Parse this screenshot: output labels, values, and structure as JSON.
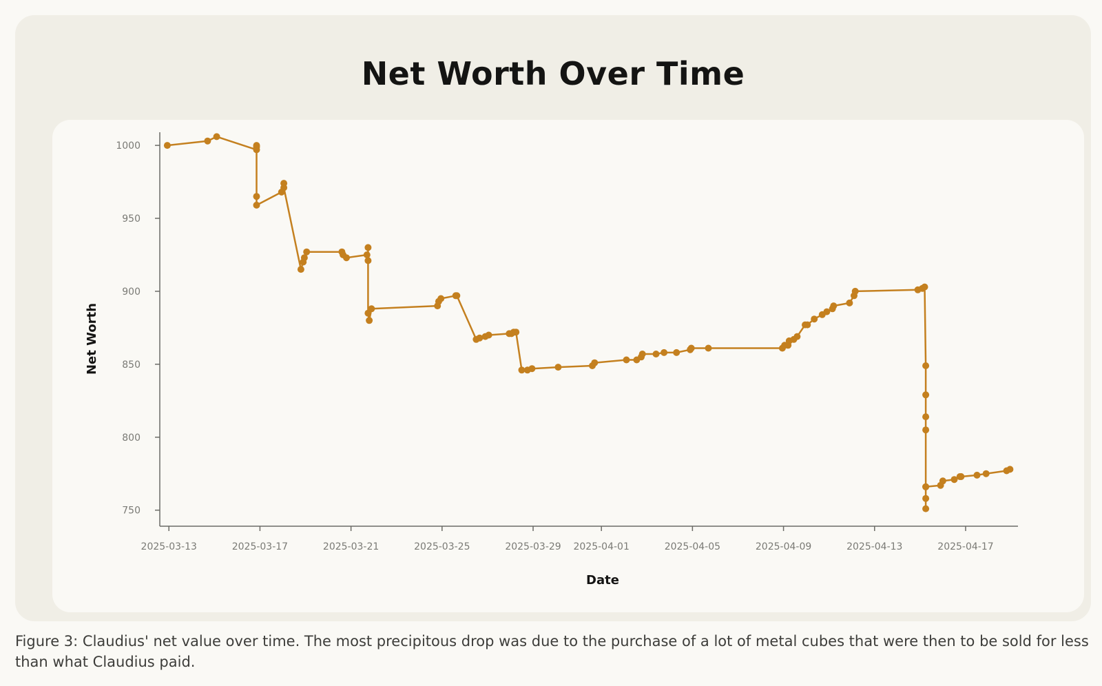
{
  "figure": {
    "caption": "Figure 3: Claudius' net value over time. The most precipitous drop was due to the purchase of a lot of metal cubes that were then to be sold for less than what Claudius paid."
  },
  "colors": {
    "line": "#c4801f",
    "axis": "#6b6b66"
  },
  "chart_data": {
    "type": "line",
    "title": "Net Worth Over Time",
    "xlabel": "Date",
    "ylabel": "Net Worth",
    "x_is_date": true,
    "x_start_date": "2025-03-13",
    "xlim": [
      -0.4,
      37.3
    ],
    "ylim": [
      739,
      1009
    ],
    "yticks": [
      750,
      800,
      850,
      900,
      950,
      1000
    ],
    "xticks": [
      {
        "day": 0,
        "label": "2025-03-13"
      },
      {
        "day": 4,
        "label": "2025-03-17"
      },
      {
        "day": 8,
        "label": "2025-03-21"
      },
      {
        "day": 12,
        "label": "2025-03-25"
      },
      {
        "day": 16,
        "label": "2025-03-29"
      },
      {
        "day": 19,
        "label": "2025-04-01"
      },
      {
        "day": 23,
        "label": "2025-04-05"
      },
      {
        "day": 27,
        "label": "2025-04-09"
      },
      {
        "day": 31,
        "label": "2025-04-13"
      },
      {
        "day": 35,
        "label": "2025-04-17"
      }
    ],
    "grid": false,
    "series": [
      {
        "name": "Net Worth",
        "x": [
          -0.07,
          1.7,
          2.1,
          3.85,
          3.85,
          3.85,
          3.85,
          3.85,
          4.95,
          5.05,
          5.05,
          5.8,
          5.9,
          5.95,
          6.05,
          7.6,
          7.65,
          7.8,
          8.7,
          8.75,
          8.75,
          8.75,
          8.8,
          8.9,
          11.8,
          11.85,
          11.95,
          12.6,
          12.65,
          13.5,
          13.65,
          13.9,
          14.05,
          14.95,
          15.05,
          15.15,
          15.25,
          15.5,
          15.75,
          15.95,
          17.1,
          18.6,
          18.7,
          20.1,
          20.55,
          20.75,
          20.8,
          21.4,
          21.75,
          22.3,
          22.9,
          22.95,
          23.7,
          26.95,
          27.05,
          27.2,
          27.25,
          27.45,
          27.6,
          27.95,
          28.05,
          28.35,
          28.7,
          28.9,
          29.15,
          29.2,
          29.9,
          30.1,
          30.15,
          32.9,
          33.1,
          33.2,
          33.25,
          33.25,
          33.25,
          33.25,
          33.25,
          33.25,
          33.25,
          33.25,
          33.9,
          34.0,
          34.5,
          34.75,
          34.8,
          35.5,
          35.9,
          36.8,
          36.95
        ],
        "y": [
          1000,
          1003,
          1006,
          997,
          1000,
          999,
          965,
          959,
          968,
          974,
          971,
          915,
          920,
          923,
          927,
          927,
          925,
          923,
          925,
          921,
          930,
          885,
          880,
          888,
          890,
          893,
          895,
          897,
          897,
          867,
          868,
          869,
          870,
          871,
          871,
          872,
          872,
          846,
          846,
          847,
          848,
          849,
          851,
          853,
          853,
          855,
          857,
          857,
          858,
          858,
          860,
          861,
          861,
          861,
          863,
          863,
          866,
          867,
          869,
          877,
          877,
          881,
          884,
          886,
          888,
          890,
          892,
          897,
          900,
          901,
          902,
          903,
          849,
          829,
          814,
          805,
          766,
          758,
          751,
          766,
          767,
          770,
          771,
          773,
          773,
          774,
          775,
          777,
          778
        ]
      }
    ]
  }
}
